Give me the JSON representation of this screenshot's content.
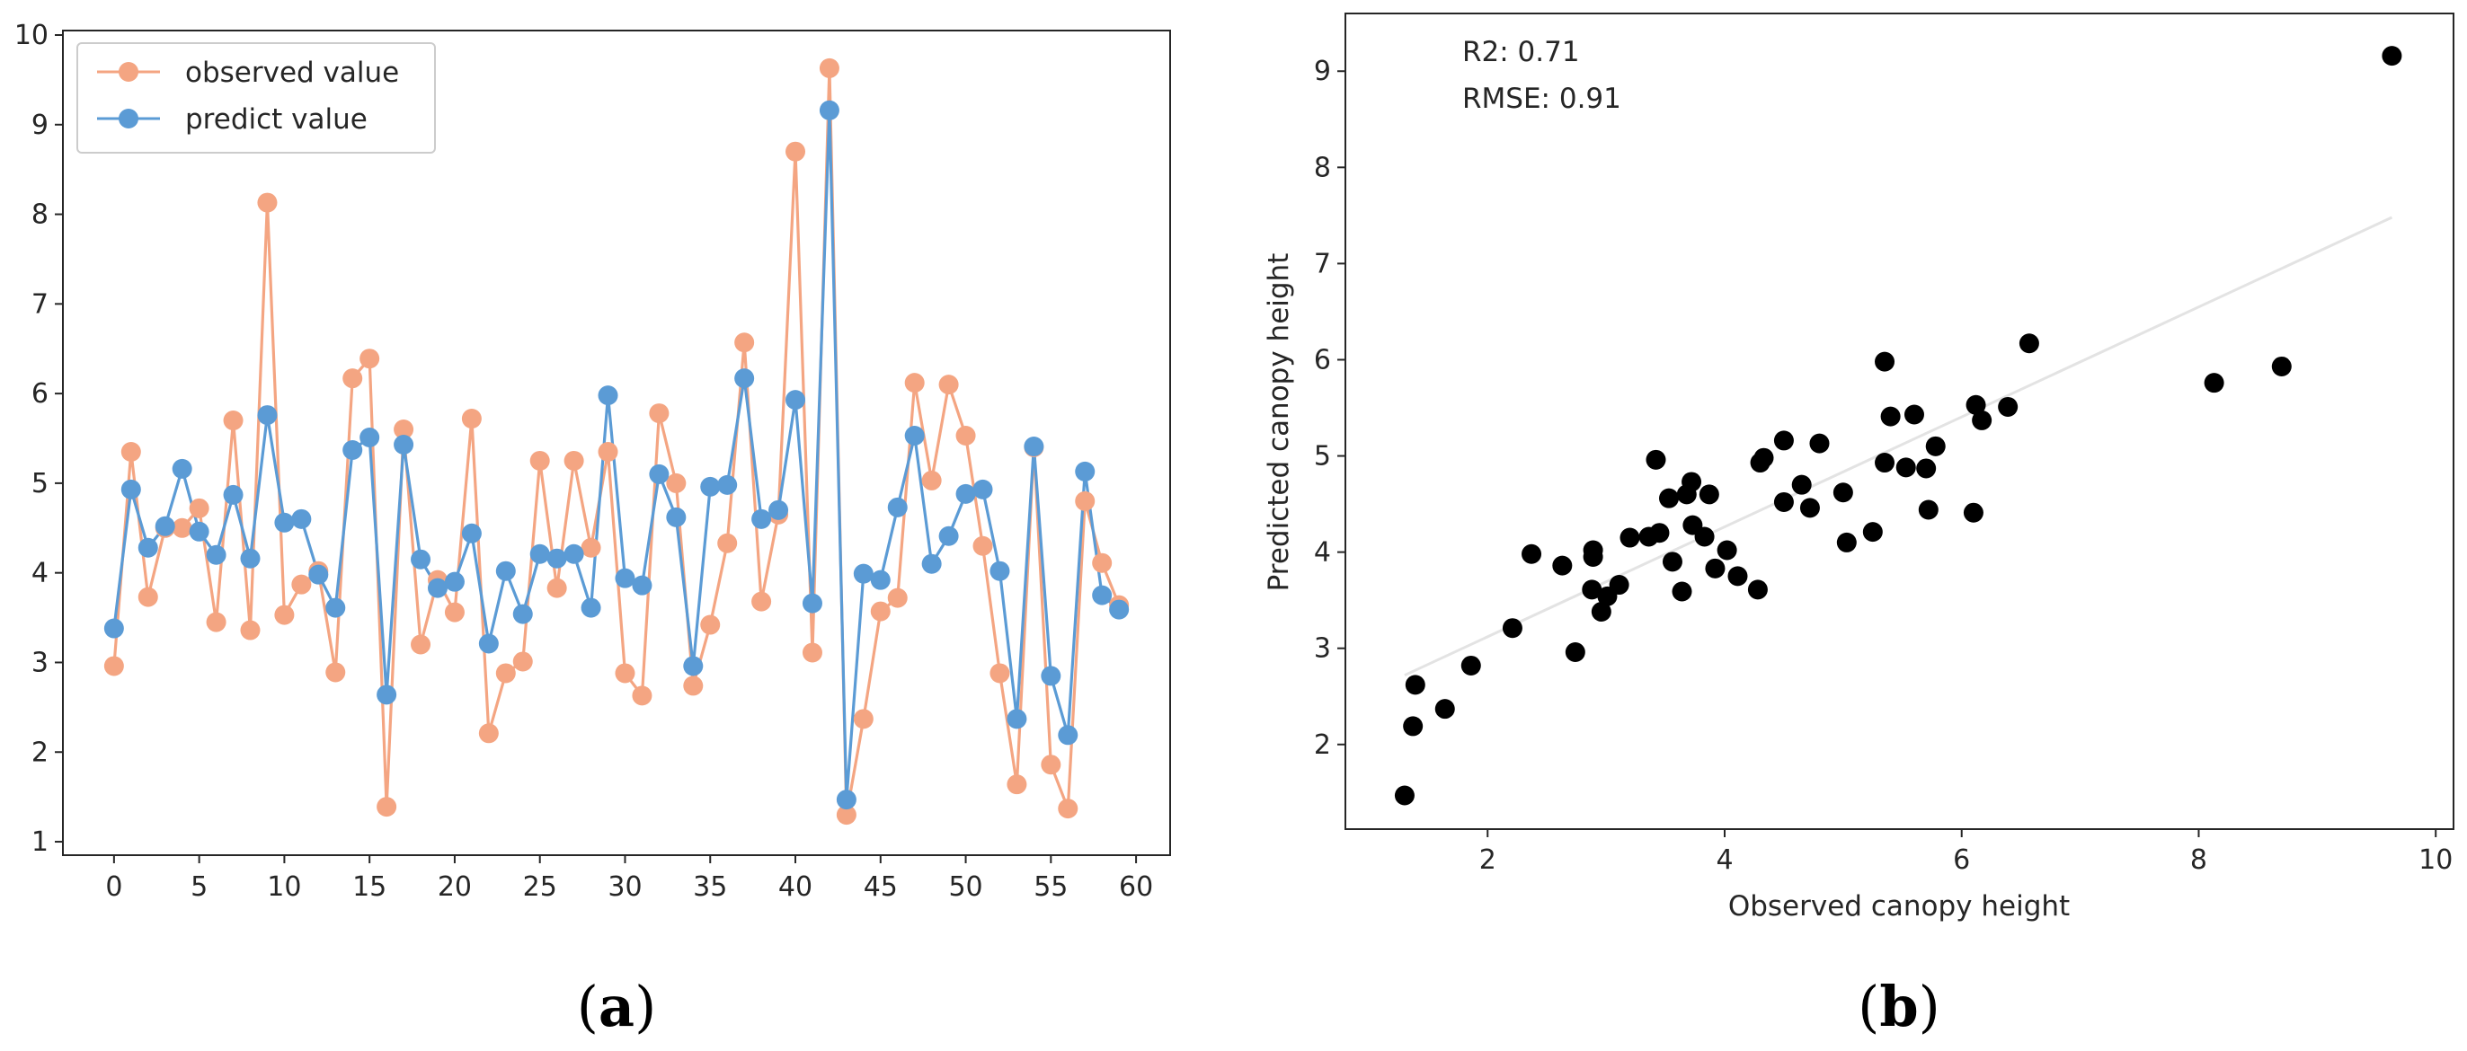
{
  "colors": {
    "observed": "#f4a582",
    "predicted": "#5b9bd5",
    "scatter": "#000000",
    "fit_line": "#e3e3e3",
    "axis": "#262626"
  },
  "chart_data": [
    {
      "panel": "(a)",
      "type": "line",
      "title": "",
      "xlabel": "",
      "ylabel": "",
      "xlim": [
        -3,
        62
      ],
      "ylim": [
        0.85,
        10.05
      ],
      "xticks": [
        0,
        5,
        10,
        15,
        20,
        25,
        30,
        35,
        40,
        45,
        50,
        55,
        60
      ],
      "yticks": [
        1,
        2,
        3,
        4,
        5,
        6,
        7,
        8,
        9,
        10
      ],
      "legend_position": "top-left",
      "x": [
        0,
        1,
        2,
        3,
        4,
        5,
        6,
        7,
        8,
        9,
        10,
        11,
        12,
        13,
        14,
        15,
        16,
        17,
        18,
        19,
        20,
        21,
        22,
        23,
        24,
        25,
        26,
        27,
        28,
        29,
        30,
        31,
        32,
        33,
        34,
        35,
        36,
        37,
        38,
        39,
        40,
        41,
        42,
        43,
        44,
        45,
        46,
        47,
        48,
        49,
        50,
        51,
        52,
        53,
        54,
        55,
        56,
        57,
        58,
        59
      ],
      "series": [
        {
          "name": "observed value",
          "values": [
            2.96,
            5.35,
            3.73,
            4.5,
            4.5,
            4.72,
            3.45,
            5.7,
            3.36,
            8.13,
            3.53,
            3.87,
            4.02,
            2.89,
            6.17,
            6.39,
            1.39,
            5.6,
            3.2,
            3.92,
            3.56,
            5.72,
            2.21,
            2.88,
            3.01,
            5.25,
            3.83,
            5.25,
            4.28,
            5.35,
            2.88,
            2.63,
            5.78,
            5.0,
            2.74,
            3.42,
            4.33,
            6.57,
            3.68,
            4.65,
            8.7,
            3.11,
            9.63,
            1.3,
            2.37,
            3.57,
            3.72,
            6.12,
            5.03,
            6.1,
            5.53,
            4.3,
            2.88,
            1.64,
            5.4,
            1.86,
            1.37,
            4.8,
            4.11,
            3.64
          ]
        },
        {
          "name": "predict value",
          "values": [
            3.38,
            4.93,
            4.28,
            4.52,
            5.16,
            4.46,
            4.2,
            4.87,
            4.16,
            5.76,
            4.56,
            4.6,
            3.98,
            3.61,
            5.37,
            5.51,
            2.64,
            5.43,
            4.15,
            3.83,
            3.9,
            4.44,
            3.21,
            4.02,
            3.54,
            4.21,
            4.16,
            4.21,
            3.61,
            5.98,
            3.94,
            3.86,
            5.1,
            4.62,
            2.96,
            4.96,
            4.98,
            6.17,
            4.6,
            4.7,
            5.93,
            3.66,
            9.16,
            1.47,
            3.99,
            3.92,
            4.73,
            5.53,
            4.1,
            4.41,
            4.88,
            4.93,
            4.02,
            2.37,
            5.41,
            2.85,
            2.19,
            5.13,
            3.75,
            3.59
          ]
        }
      ]
    },
    {
      "panel": "(b)",
      "type": "scatter",
      "title": "",
      "xlabel": "Observed canopy height",
      "ylabel": "Predicted canopy height",
      "xlim": [
        0.8,
        10.15
      ],
      "ylim": [
        1.12,
        9.6
      ],
      "xticks": [
        2,
        4,
        6,
        8,
        10
      ],
      "yticks": [
        2,
        3,
        4,
        5,
        6,
        7,
        8,
        9
      ],
      "annotations": [
        "R2: 0.71",
        "RMSE: 0.91"
      ],
      "fit_line": {
        "x": [
          1.3,
          9.63
        ],
        "y": [
          2.72,
          7.48
        ]
      },
      "points": [
        [
          1.3,
          1.47
        ],
        [
          1.37,
          2.19
        ],
        [
          1.39,
          2.62
        ],
        [
          1.64,
          2.37
        ],
        [
          1.86,
          2.82
        ],
        [
          2.21,
          3.21
        ],
        [
          2.37,
          3.98
        ],
        [
          2.63,
          3.86
        ],
        [
          2.74,
          2.96
        ],
        [
          2.88,
          3.61
        ],
        [
          2.89,
          3.95
        ],
        [
          2.89,
          4.02
        ],
        [
          2.96,
          3.38
        ],
        [
          3.01,
          3.54
        ],
        [
          3.11,
          3.66
        ],
        [
          3.2,
          4.15
        ],
        [
          3.36,
          4.16
        ],
        [
          3.42,
          4.96
        ],
        [
          3.45,
          4.2
        ],
        [
          3.53,
          4.56
        ],
        [
          3.56,
          3.9
        ],
        [
          3.64,
          3.59
        ],
        [
          3.68,
          4.6
        ],
        [
          3.72,
          4.73
        ],
        [
          3.73,
          4.28
        ],
        [
          3.83,
          4.16
        ],
        [
          3.87,
          4.6
        ],
        [
          3.92,
          3.83
        ],
        [
          4.02,
          4.02
        ],
        [
          4.11,
          3.75
        ],
        [
          4.28,
          3.61
        ],
        [
          4.3,
          4.93
        ],
        [
          4.33,
          4.98
        ],
        [
          4.5,
          5.16
        ],
        [
          4.5,
          4.52
        ],
        [
          4.65,
          4.7
        ],
        [
          4.72,
          4.46
        ],
        [
          4.8,
          5.13
        ],
        [
          5.0,
          4.62
        ],
        [
          5.03,
          4.1
        ],
        [
          5.25,
          4.21
        ],
        [
          5.35,
          5.98
        ],
        [
          5.35,
          4.93
        ],
        [
          5.4,
          5.41
        ],
        [
          5.53,
          4.88
        ],
        [
          5.6,
          5.43
        ],
        [
          5.7,
          4.87
        ],
        [
          5.72,
          4.44
        ],
        [
          5.78,
          5.1
        ],
        [
          6.1,
          4.41
        ],
        [
          6.12,
          5.53
        ],
        [
          6.17,
          5.37
        ],
        [
          6.39,
          5.51
        ],
        [
          6.57,
          6.17
        ],
        [
          8.13,
          5.76
        ],
        [
          8.7,
          5.93
        ],
        [
          9.63,
          9.16
        ]
      ]
    }
  ],
  "panel_labels": {
    "a": "a",
    "b": "b",
    "open": "(",
    "close": ")"
  }
}
